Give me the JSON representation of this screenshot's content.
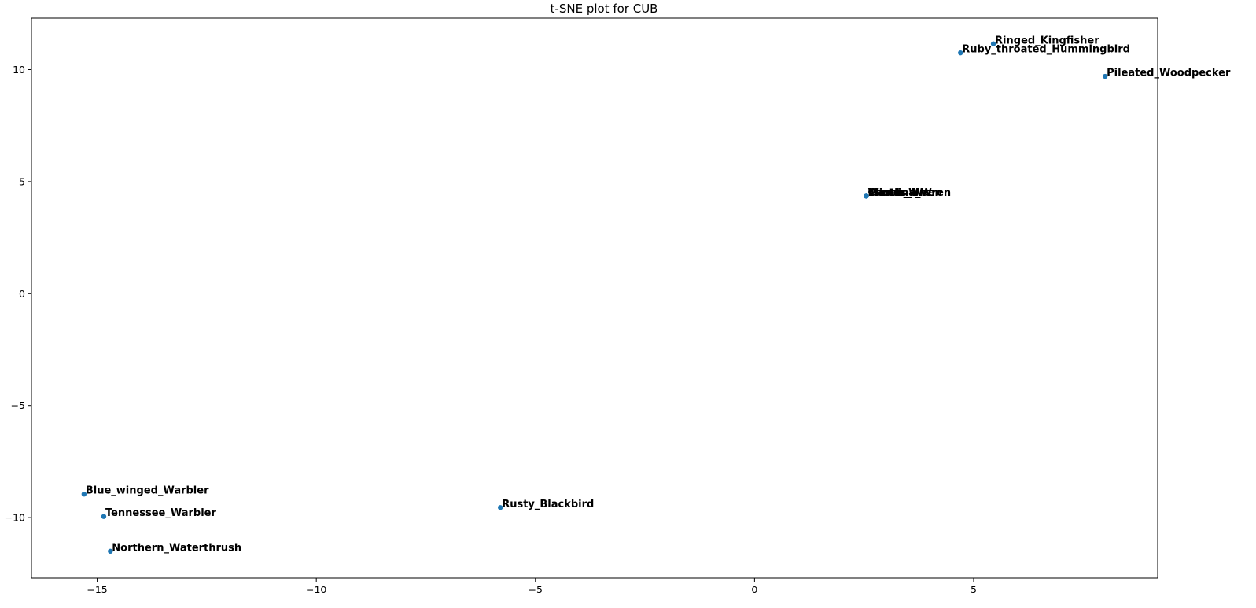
{
  "chart_data": {
    "type": "scatter",
    "title": "t-SNE plot for CUB",
    "xlabel": "",
    "ylabel": "",
    "xlim": [
      -16.5,
      9.2
    ],
    "ylim": [
      -12.7,
      12.3
    ],
    "xticks": [
      -15,
      -10,
      -5,
      0,
      5
    ],
    "yticks": [
      -10,
      -5,
      0,
      5,
      10
    ],
    "xtick_labels": [
      "−15",
      "−10",
      "−5",
      "0",
      "5"
    ],
    "ytick_labels": [
      "−10",
      "−5",
      "0",
      "5",
      "10"
    ],
    "grid": false,
    "marker_color": "#1f77b4",
    "points": [
      {
        "label": "Ringed_Kingfisher",
        "x": 5.45,
        "y": 11.15
      },
      {
        "label": "Ruby_throated_Hummingbird",
        "x": 4.7,
        "y": 10.75
      },
      {
        "label": "Pileated_Woodpecker",
        "x": 8.0,
        "y": 9.7
      },
      {
        "label": "Winter_Wren",
        "x": 2.55,
        "y": 4.35
      },
      {
        "label": "Marsh_Wren",
        "x": 2.55,
        "y": 4.35
      },
      {
        "label": "Cactus_Wren",
        "x": 2.55,
        "y": 4.35
      },
      {
        "label": "Carolina_Wren",
        "x": 2.55,
        "y": 4.35
      },
      {
        "label": "Blue_winged_Warbler",
        "x": -15.3,
        "y": -8.95
      },
      {
        "label": "Tennessee_Warbler",
        "x": -14.85,
        "y": -9.95
      },
      {
        "label": "Northern_Waterthrush",
        "x": -14.7,
        "y": -11.5
      },
      {
        "label": "Rusty_Blackbird",
        "x": -5.8,
        "y": -9.55
      }
    ]
  }
}
